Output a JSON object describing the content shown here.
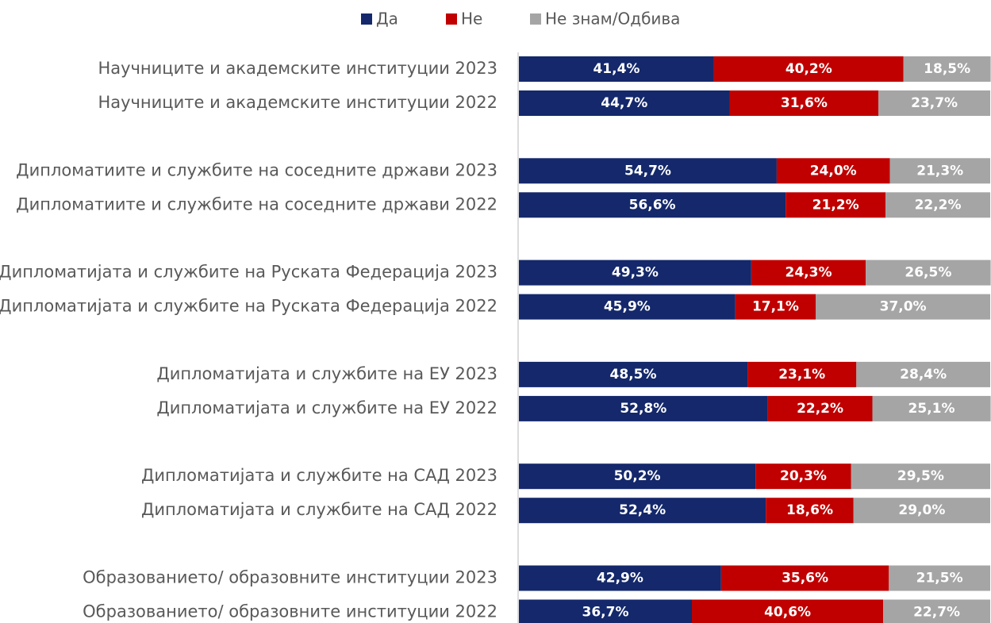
{
  "chart_data": {
    "type": "stacked_barh",
    "categories": [
      "Научниците и академските институции 2023",
      "Научниците и академските институции 2022",
      "Дипломатиите и службите на соседните држави 2023",
      "Дипломатиите и службите на соседните држави 2022",
      "Дипломатијата и службите на Руската Федерација 2023",
      "Дипломатијата и службите на Руската Федерација 2022",
      "Дипломатијата и службите на ЕУ 2023",
      "Дипломатијата и службите на ЕУ 2022",
      "Дипломатијата и службите на САД 2023",
      "Дипломатијата и службите на САД 2022",
      "Образованието/ образовните институции 2023",
      "Образованието/ образовните институции 2022"
    ],
    "series": [
      {
        "name": "Да",
        "color": "#14286b",
        "values": [
          41.4,
          44.7,
          54.7,
          56.6,
          49.3,
          45.9,
          48.5,
          52.8,
          50.2,
          52.4,
          42.9,
          36.7
        ],
        "value_labels": [
          "41,4%",
          "44,7%",
          "54,7%",
          "56,6%",
          "49,3%",
          "45,9%",
          "48,5%",
          "52,8%",
          "50,2%",
          "52,4%",
          "42,9%",
          "36,7%"
        ]
      },
      {
        "name": "Не",
        "color": "#c00000",
        "values": [
          40.2,
          31.6,
          24.0,
          21.2,
          24.3,
          17.1,
          23.1,
          22.2,
          20.3,
          18.6,
          35.6,
          40.6
        ],
        "value_labels": [
          "40,2%",
          "31,6%",
          "24,0%",
          "21,2%",
          "24,3%",
          "17,1%",
          "23,1%",
          "22,2%",
          "20,3%",
          "18,6%",
          "35,6%",
          "40,6%"
        ]
      },
      {
        "name": "Не знам/Одбива",
        "color": "#a5a5a5",
        "values": [
          18.5,
          23.7,
          21.3,
          22.2,
          26.5,
          37.0,
          28.4,
          25.1,
          29.5,
          29.0,
          21.5,
          22.7
        ],
        "value_labels": [
          "18,5%",
          "23,7%",
          "21,3%",
          "22,2%",
          "26,5%",
          "37,0%",
          "28,4%",
          "25,1%",
          "29,5%",
          "29,0%",
          "21,5%",
          "22,7%"
        ]
      }
    ],
    "xlim": [
      0,
      100
    ],
    "legend": "top"
  }
}
